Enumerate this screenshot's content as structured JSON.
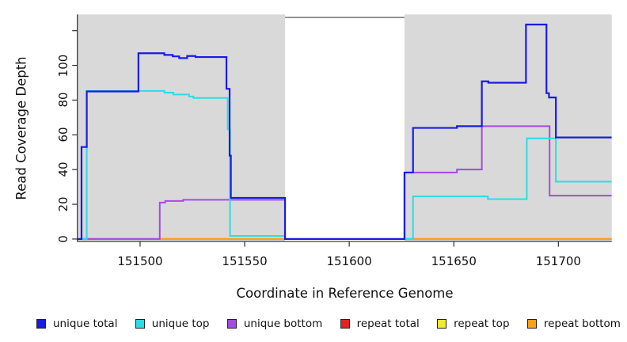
{
  "figure": {
    "x_axis_title": "Coordinate in Reference Genome",
    "y_axis_title": "Read Coverage Depth",
    "plot_background_color": "#d9d9d9",
    "gap_region_color": "#ffffff"
  },
  "legend": {
    "items": [
      {
        "label": "unique total",
        "color": "#1a1ae6"
      },
      {
        "label": "unique top",
        "color": "#2adde2"
      },
      {
        "label": "unique bottom",
        "color": "#a44be0"
      },
      {
        "label": "repeat total",
        "color": "#e62020"
      },
      {
        "label": "repeat top",
        "color": "#efe92f"
      },
      {
        "label": "repeat bottom",
        "color": "#ff9e17"
      }
    ]
  },
  "chart_data": {
    "type": "line",
    "line_style": "step-after",
    "title": "",
    "xlabel": "Coordinate in Reference Genome",
    "ylabel": "Read Coverage Depth",
    "xlim": [
      151470,
      151725.5
    ],
    "ylim": [
      -1.4,
      129.3
    ],
    "grid": false,
    "legend_position": "bottom",
    "x_ticks": [
      {
        "value": 151500,
        "label": "151500"
      },
      {
        "value": 151550,
        "label": "151550"
      },
      {
        "value": 151600,
        "label": "151600"
      },
      {
        "value": 151650,
        "label": "151650"
      },
      {
        "value": 151700,
        "label": "151700"
      }
    ],
    "y_ticks": [
      {
        "value": 0,
        "label": "0"
      },
      {
        "value": 20,
        "label": "20"
      },
      {
        "value": 40,
        "label": "40"
      },
      {
        "value": 60,
        "label": "60"
      },
      {
        "value": 80,
        "label": "80"
      },
      {
        "value": 100,
        "label": "100"
      },
      {
        "value": 120,
        "label": ""
      }
    ],
    "background_regions": [
      {
        "name": "left-coverage-region",
        "x0": 151470,
        "x1": 151569.3,
        "fill": "#d9d9d9"
      },
      {
        "name": "uncovered-gap-region",
        "x0": 151569.3,
        "x1": 151626.4,
        "fill": "#ffffff",
        "top_border": "#6e6e6e"
      },
      {
        "name": "right-coverage-region",
        "x0": 151626.4,
        "x1": 151725.5,
        "fill": "#d9d9d9"
      }
    ],
    "draw_order": [
      "repeat total",
      "repeat top",
      "repeat bottom",
      "unique bottom",
      "unique top",
      "unique total"
    ],
    "series": [
      {
        "name": "unique total",
        "color": "#1a1ae6",
        "width": 2.2,
        "points": [
          [
            151470,
            0
          ],
          [
            151472,
            53
          ],
          [
            151474.5,
            85
          ],
          [
            151499.2,
            107
          ],
          [
            151511.6,
            106
          ],
          [
            151515.6,
            105.2
          ],
          [
            151518.7,
            104.2
          ],
          [
            151522.5,
            105.4
          ],
          [
            151526.5,
            104.8
          ],
          [
            151541.3,
            86.5
          ],
          [
            151542.8,
            48
          ],
          [
            151543.4,
            23.7
          ],
          [
            151569.3,
            0
          ],
          [
            151626.4,
            38.3
          ],
          [
            151630.5,
            64
          ],
          [
            151651.5,
            65
          ],
          [
            151663.4,
            90.8
          ],
          [
            151666.5,
            90
          ],
          [
            151684.5,
            123.5
          ],
          [
            151694.3,
            84
          ],
          [
            151695.5,
            81.5
          ],
          [
            151698.8,
            58.5
          ]
        ]
      },
      {
        "name": "unique top",
        "color": "#2adde2",
        "width": 2,
        "points": [
          [
            151470,
            0
          ],
          [
            151474.5,
            85.3
          ],
          [
            151511.6,
            84.3
          ],
          [
            151515.9,
            83.2
          ],
          [
            151523.4,
            82.1
          ],
          [
            151525.5,
            81.2
          ],
          [
            151541.9,
            63.2
          ],
          [
            151543,
            1.8
          ],
          [
            151569.3,
            0
          ],
          [
            151630.5,
            24.5
          ],
          [
            151666.3,
            23
          ],
          [
            151684.9,
            58
          ],
          [
            151698.8,
            33
          ]
        ]
      },
      {
        "name": "unique bottom",
        "color": "#a44be0",
        "width": 2,
        "points": [
          [
            151470,
            0
          ],
          [
            151509.4,
            21
          ],
          [
            151512,
            21.9
          ],
          [
            151520.6,
            22.6
          ],
          [
            151569.3,
            0
          ],
          [
            151626.5,
            38.3
          ],
          [
            151651.5,
            40
          ],
          [
            151663.4,
            65
          ],
          [
            151695.8,
            25
          ]
        ]
      },
      {
        "name": "repeat total",
        "color": "#e62020",
        "width": 2,
        "points": [
          [
            151470,
            0
          ],
          [
            151725.5,
            0
          ]
        ]
      },
      {
        "name": "repeat top",
        "color": "#efe92f",
        "width": 2,
        "points": [
          [
            151470,
            0
          ],
          [
            151725.5,
            0
          ]
        ]
      },
      {
        "name": "repeat bottom",
        "color": "#ff9e17",
        "width": 2,
        "points": [
          [
            151470,
            0
          ],
          [
            151725.5,
            0
          ]
        ]
      }
    ]
  }
}
